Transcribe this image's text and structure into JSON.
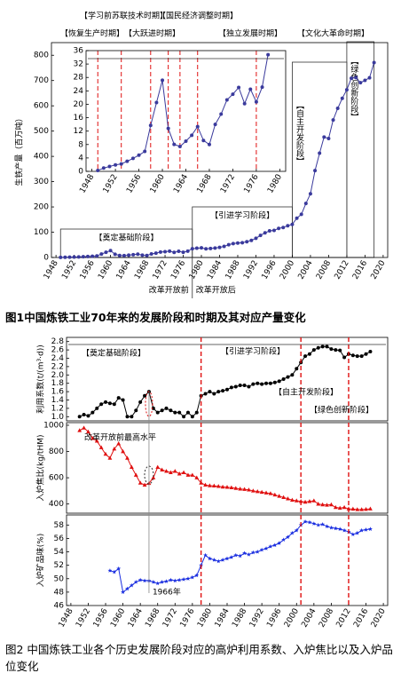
{
  "captions": [
    "图1中国炼铁工业70年来的发展阶段和时期及其对应产量变化",
    "图2 中国炼铁工业各个历史发展阶段对应的高炉利用系数、入炉焦比以及入炉品位变化"
  ],
  "chart_data": [
    {
      "type": "line",
      "y_label": "生铁产量（百万吨）",
      "color": "#3a3a9c",
      "marker": "circle",
      "x": [
        1949,
        1950,
        1951,
        1952,
        1953,
        1954,
        1955,
        1956,
        1957,
        1958,
        1959,
        1960,
        1961,
        1962,
        1963,
        1964,
        1965,
        1966,
        1967,
        1968,
        1969,
        1970,
        1971,
        1972,
        1973,
        1974,
        1975,
        1976,
        1977,
        1978,
        1979,
        1980,
        1981,
        1982,
        1983,
        1984,
        1985,
        1986,
        1987,
        1988,
        1989,
        1990,
        1991,
        1992,
        1993,
        1994,
        1995,
        1996,
        1997,
        1998,
        1999,
        2000,
        2001,
        2002,
        2003,
        2004,
        2005,
        2006,
        2007,
        2008,
        2009,
        2010,
        2011,
        2012,
        2013,
        2014,
        2015,
        2016,
        2017,
        2018
      ],
      "values": [
        0.25,
        0.98,
        1.45,
        1.93,
        2.23,
        3.0,
        3.87,
        4.83,
        5.94,
        13.69,
        20.5,
        27.16,
        12.8,
        8.05,
        7.41,
        9.01,
        10.77,
        13.34,
        9.2,
        8.0,
        14.0,
        17.06,
        21.3,
        23.0,
        25.0,
        20.2,
        24.5,
        20.7,
        25.1,
        34.79,
        36.7,
        38.0,
        34.2,
        35.5,
        37.4,
        40.0,
        43.8,
        50.6,
        55.0,
        57.0,
        58.2,
        62.4,
        67.7,
        75.9,
        87.4,
        97.4,
        105.3,
        107.2,
        115.1,
        118.6,
        125.4,
        131.0,
        155.5,
        170.8,
        213.7,
        251.9,
        343.8,
        412.5,
        476.5,
        470.7,
        544.0,
        590.2,
        629.7,
        663.5,
        709.0,
        711.6,
        691.4,
        700.7,
        711.0,
        771.1
      ],
      "xlim": [
        1947,
        2021
      ],
      "xticks": [
        1948,
        1952,
        1956,
        1960,
        1964,
        1968,
        1972,
        1976,
        1980,
        1984,
        1988,
        1992,
        1996,
        2000,
        2004,
        2008,
        2012,
        2016,
        2020
      ],
      "ylim": [
        0,
        850
      ],
      "yticks": [
        0,
        100,
        200,
        300,
        400,
        500,
        600,
        700,
        800
      ],
      "stages": [
        "【奠定基础阶段】",
        "【引进学习阶段】",
        "【自主开发阶段】",
        "【绿色创新阶段】"
      ],
      "stage_boundaries": [
        1949,
        1978,
        2000,
        2012,
        2018
      ],
      "eras": [
        "改革开放前",
        "改革开放后"
      ],
      "reform_year": 1978
    },
    {
      "type": "line",
      "color": "#3a3a9c",
      "marker": "circle",
      "x": [
        1949,
        1950,
        1951,
        1952,
        1953,
        1954,
        1955,
        1956,
        1957,
        1958,
        1959,
        1960,
        1961,
        1962,
        1963,
        1964,
        1965,
        1966,
        1967,
        1968,
        1969,
        1970,
        1971,
        1972,
        1973,
        1974,
        1975,
        1976,
        1977,
        1978
      ],
      "values": [
        0.25,
        0.98,
        1.45,
        1.93,
        2.23,
        3.0,
        3.87,
        4.83,
        5.94,
        13.69,
        20.5,
        27.16,
        12.8,
        8.05,
        7.41,
        9.01,
        10.77,
        13.34,
        9.2,
        8.0,
        14.0,
        17.06,
        21.3,
        23.0,
        25.0,
        20.2,
        24.5,
        20.7,
        25.1,
        34.79
      ],
      "xlim": [
        1947,
        1981
      ],
      "xticks": [
        1948,
        1952,
        1956,
        1960,
        1964,
        1968,
        1972,
        1976,
        1980
      ],
      "ylim": [
        0,
        36
      ],
      "yticks": [
        0,
        4,
        8,
        12,
        16,
        20,
        24,
        28,
        32,
        36
      ],
      "periods": [
        "【恢复生产时期】",
        "【学习前苏联技术时期】",
        "【大跃进时期】",
        "【国民经济调整时期】",
        "【独立发展时期】",
        "【文化大革命时期】"
      ],
      "period_boundaries": [
        1949,
        1953,
        1958,
        1961,
        1963,
        1966,
        1976
      ]
    },
    {
      "type": "line",
      "y_label": "利用系数(t/(m³·d))",
      "color": "#000000",
      "marker": "circle",
      "x": [
        1950,
        1951,
        1952,
        1953,
        1954,
        1955,
        1956,
        1957,
        1958,
        1959,
        1960,
        1961,
        1962,
        1963,
        1964,
        1965,
        1966,
        1967,
        1968,
        1969,
        1970,
        1971,
        1972,
        1973,
        1974,
        1975,
        1976,
        1977,
        1978,
        1979,
        1980,
        1981,
        1982,
        1983,
        1984,
        1985,
        1986,
        1987,
        1988,
        1989,
        1990,
        1991,
        1992,
        1993,
        1994,
        1995,
        1996,
        1997,
        1998,
        1999,
        2000,
        2001,
        2002,
        2003,
        2004,
        2005,
        2006,
        2007,
        2008,
        2009,
        2010,
        2011,
        2012,
        2013,
        2014,
        2015,
        2016,
        2017
      ],
      "values": [
        1.0,
        1.05,
        1.02,
        1.1,
        1.2,
        1.3,
        1.35,
        1.32,
        1.3,
        1.45,
        1.4,
        1.0,
        1.0,
        1.15,
        1.35,
        1.5,
        1.6,
        1.2,
        1.1,
        1.15,
        1.2,
        1.15,
        1.1,
        1.1,
        1.0,
        1.1,
        1.0,
        1.1,
        1.5,
        1.55,
        1.6,
        1.55,
        1.6,
        1.62,
        1.65,
        1.7,
        1.72,
        1.75,
        1.75,
        1.72,
        1.78,
        1.8,
        1.78,
        1.8,
        1.8,
        1.82,
        1.85,
        1.9,
        1.95,
        2.0,
        2.15,
        2.3,
        2.45,
        2.5,
        2.6,
        2.65,
        2.68,
        2.68,
        2.62,
        2.6,
        2.59,
        2.42,
        2.5,
        2.47,
        2.45,
        2.45,
        2.5,
        2.56
      ],
      "xlim": [
        1947,
        2021
      ],
      "ylim": [
        0.9,
        2.9
      ],
      "yticks": [
        {
          "value": 1,
          "label": "1.0"
        },
        1.2,
        1.4,
        1.6,
        1.8,
        {
          "value": 2,
          "label": "2.0"
        },
        2.2,
        2.4,
        2.6,
        2.8
      ],
      "stages": [
        "【奠定基础阶段】",
        "【引进学习阶段】",
        "【自主开发阶段】",
        "【绿色创新阶段】"
      ],
      "stage_boundaries": [
        1978,
        2001,
        2012
      ]
    },
    {
      "type": "line",
      "y_label": "入炉焦比(kg/tHM)",
      "color": "#e01010",
      "marker": "triangle",
      "x": [
        1950,
        1951,
        1952,
        1953,
        1954,
        1955,
        1956,
        1957,
        1958,
        1959,
        1960,
        1961,
        1962,
        1963,
        1964,
        1965,
        1966,
        1967,
        1968,
        1969,
        1970,
        1971,
        1972,
        1973,
        1974,
        1975,
        1976,
        1977,
        1978,
        1979,
        1980,
        1981,
        1982,
        1983,
        1984,
        1985,
        1986,
        1987,
        1988,
        1989,
        1990,
        1991,
        1992,
        1993,
        1994,
        1995,
        1996,
        1997,
        1998,
        1999,
        2000,
        2001,
        2002,
        2003,
        2004,
        2005,
        2006,
        2007,
        2008,
        2009,
        2010,
        2011,
        2012,
        2013,
        2014,
        2015,
        2016,
        2017
      ],
      "values": [
        960,
        980,
        950,
        900,
        880,
        830,
        780,
        750,
        820,
        860,
        800,
        750,
        680,
        620,
        560,
        545,
        558,
        600,
        680,
        660,
        650,
        640,
        650,
        630,
        640,
        620,
        620,
        600,
        560,
        545,
        540,
        538,
        535,
        530,
        528,
        525,
        520,
        515,
        512,
        508,
        500,
        495,
        490,
        485,
        480,
        470,
        460,
        450,
        440,
        430,
        425,
        420,
        415,
        420,
        425,
        400,
        395,
        392,
        395,
        374,
        369,
        374,
        363,
        362,
        358,
        358,
        360,
        363
      ],
      "xlim": [
        1947,
        2021
      ],
      "ylim": [
        330,
        1020
      ],
      "yticks": [
        400,
        600,
        800,
        1000
      ],
      "annotation": "改革开放前最高水平"
    },
    {
      "type": "line",
      "y_label": "入炉矿品味(%)",
      "color": "#1a2ee0",
      "marker": "star",
      "x": [
        1957,
        1958,
        1959,
        1960,
        1961,
        1962,
        1963,
        1964,
        1965,
        1966,
        1967,
        1968,
        1969,
        1970,
        1971,
        1972,
        1973,
        1974,
        1975,
        1976,
        1977,
        1978,
        1979,
        1980,
        1981,
        1982,
        1983,
        1984,
        1985,
        1986,
        1987,
        1988,
        1989,
        1990,
        1991,
        1992,
        1993,
        1994,
        1995,
        1996,
        1997,
        1998,
        1999,
        2000,
        2001,
        2002,
        2003,
        2004,
        2005,
        2006,
        2007,
        2008,
        2009,
        2010,
        2011,
        2012,
        2013,
        2014,
        2015,
        2016,
        2017
      ],
      "values": [
        51.2,
        51.0,
        51.5,
        48.0,
        48.5,
        49.0,
        49.5,
        49.8,
        49.7,
        49.7,
        49.5,
        49.3,
        49.5,
        49.6,
        49.8,
        49.7,
        49.8,
        49.9,
        50.0,
        50.2,
        50.5,
        52.0,
        53.5,
        53.0,
        52.8,
        52.6,
        52.8,
        53.0,
        53.2,
        53.5,
        53.4,
        53.8,
        53.6,
        53.9,
        54.0,
        54.3,
        54.5,
        54.8,
        55.0,
        55.3,
        55.8,
        56.2,
        56.8,
        57.2,
        58.0,
        58.5,
        58.4,
        58.2,
        58.0,
        58.1,
        57.8,
        57.6,
        57.5,
        57.4,
        57.2,
        57.0,
        56.6,
        56.8,
        57.2,
        57.3,
        57.4
      ],
      "xlim": [
        1947,
        2021
      ],
      "ylim": [
        46,
        59.5
      ],
      "yticks": [
        46,
        48,
        50,
        52,
        54,
        56,
        58
      ],
      "xticks": [
        1948,
        1952,
        1956,
        1960,
        1964,
        1968,
        1972,
        1976,
        1980,
        1984,
        1988,
        1992,
        1996,
        2000,
        2004,
        2008,
        2012,
        2016,
        2020
      ],
      "annotation": "1966年",
      "annotation_year": 1966
    }
  ]
}
